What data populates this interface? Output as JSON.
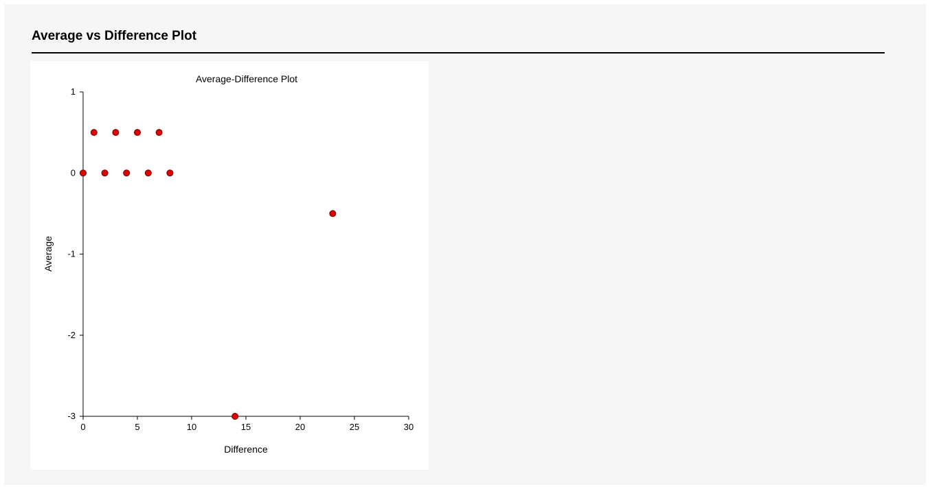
{
  "report": {
    "section_title": "Average vs Difference Plot"
  },
  "chart_data": {
    "type": "scatter",
    "title": "Average-Difference Plot",
    "xlabel": "Difference",
    "ylabel": "Average",
    "xlim": [
      0,
      30
    ],
    "ylim": [
      -3,
      1
    ],
    "x_ticks": [
      0,
      5,
      10,
      15,
      20,
      25,
      30
    ],
    "y_ticks": [
      1,
      0,
      -1,
      -2,
      -3
    ],
    "grid": false,
    "legend": "none",
    "marker_color": "#e00000",
    "marker_edge_color": "#6a0000",
    "points": [
      {
        "x": 1,
        "y": 0.5
      },
      {
        "x": 3,
        "y": 0.5
      },
      {
        "x": 5,
        "y": 0.5
      },
      {
        "x": 7,
        "y": 0.5
      },
      {
        "x": 0,
        "y": 0
      },
      {
        "x": 2,
        "y": 0
      },
      {
        "x": 4,
        "y": 0
      },
      {
        "x": 6,
        "y": 0
      },
      {
        "x": 8,
        "y": 0
      },
      {
        "x": 23,
        "y": -0.5
      },
      {
        "x": 14,
        "y": -3
      }
    ]
  }
}
